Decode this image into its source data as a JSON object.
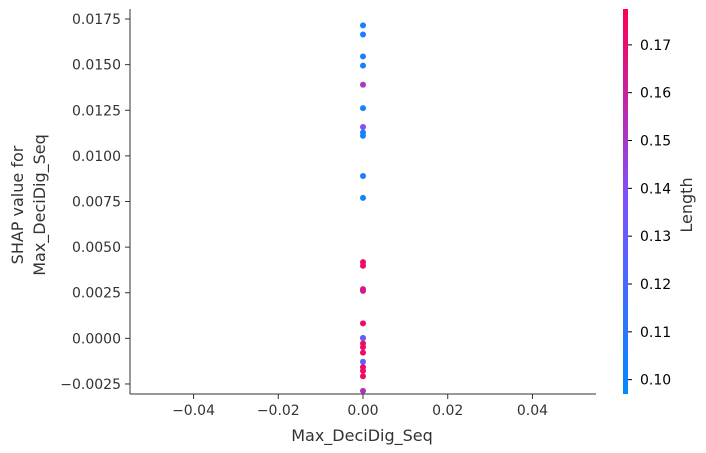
{
  "chart_data": {
    "type": "scatter",
    "title": "",
    "xlabel": "Max_DeciDig_Seq",
    "ylabel_lines": [
      "SHAP value for",
      "Max_DeciDig_Seq"
    ],
    "xlim": [
      -0.055,
      0.055
    ],
    "ylim": [
      -0.00305,
      0.01805
    ],
    "x_ticks": [
      -0.04,
      -0.02,
      0,
      0.02,
      0.04
    ],
    "x_tick_labels": [
      "−0.04",
      "−0.02",
      "0.00",
      "0.02",
      "0.04"
    ],
    "y_ticks": [
      -0.0025,
      0,
      0.0025,
      0.005,
      0.0075,
      0.01,
      0.0125,
      0.015,
      0.0175
    ],
    "y_tick_labels": [
      "−0.0025",
      "0.0000",
      "0.0025",
      "0.0050",
      "0.0075",
      "0.0100",
      "0.0125",
      "0.0150",
      "0.0175"
    ],
    "grid": false,
    "colorbar": {
      "label": "Length",
      "range": [
        0.097,
        0.1775
      ],
      "ticks": [
        0.1,
        0.11,
        0.12,
        0.13,
        0.14,
        0.15,
        0.16,
        0.17
      ],
      "tick_labels": [
        "0.10",
        "0.11",
        "0.12",
        "0.13",
        "0.14",
        "0.15",
        "0.16",
        "0.17"
      ],
      "low_color": "#008afb",
      "mid_color": "#7c52ff",
      "high_color": "#ff0052"
    },
    "points": [
      {
        "x": 0,
        "y": 0.01715,
        "c": 0.105
      },
      {
        "x": 0,
        "y": 0.01665,
        "c": 0.105
      },
      {
        "x": 0,
        "y": 0.01545,
        "c": 0.105
      },
      {
        "x": 0,
        "y": 0.01495,
        "c": 0.105
      },
      {
        "x": 0,
        "y": 0.0139,
        "c": 0.15
      },
      {
        "x": 0,
        "y": 0.01262,
        "c": 0.105
      },
      {
        "x": 0,
        "y": 0.01158,
        "c": 0.14
      },
      {
        "x": 0,
        "y": 0.01128,
        "c": 0.105
      },
      {
        "x": 0,
        "y": 0.0111,
        "c": 0.105
      },
      {
        "x": 0,
        "y": 0.0089,
        "c": 0.105
      },
      {
        "x": 0,
        "y": 0.0077,
        "c": 0.105
      },
      {
        "x": 0,
        "y": 0.00418,
        "c": 0.172
      },
      {
        "x": 0,
        "y": 0.00398,
        "c": 0.172
      },
      {
        "x": 0,
        "y": 0.0027,
        "c": 0.165
      },
      {
        "x": 0,
        "y": 0.0026,
        "c": 0.165
      },
      {
        "x": 0,
        "y": 0.00082,
        "c": 0.172
      },
      {
        "x": 0,
        "y": 2e-05,
        "c": 0.14
      },
      {
        "x": 0,
        "y": 2e-05,
        "c": 0.13
      },
      {
        "x": 0,
        "y": -0.00028,
        "c": 0.172
      },
      {
        "x": 0,
        "y": -0.00048,
        "c": 0.172
      },
      {
        "x": 0,
        "y": -0.00078,
        "c": 0.172
      },
      {
        "x": 0,
        "y": -0.00128,
        "c": 0.13
      },
      {
        "x": 0,
        "y": -0.00158,
        "c": 0.172
      },
      {
        "x": 0,
        "y": -0.00178,
        "c": 0.172
      },
      {
        "x": 0,
        "y": -0.00208,
        "c": 0.172
      },
      {
        "x": 0,
        "y": -0.00288,
        "c": 0.155
      }
    ]
  }
}
